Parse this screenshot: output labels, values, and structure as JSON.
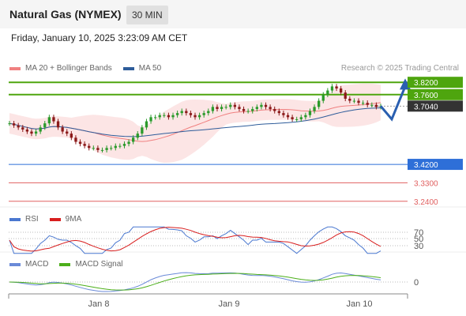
{
  "header": {
    "title": "Natural Gas (NYMEX)",
    "timeframe": "30 MIN",
    "datetime": "Friday, January 10, 2025 3:23:09 AM CET",
    "credit": "Research © 2025 Trading Central"
  },
  "legends": {
    "main": [
      {
        "label": "MA 20 + Bollinger Bands",
        "color": "#f08080"
      },
      {
        "label": "MA 50",
        "color": "#2e5c9a"
      }
    ],
    "rsi": [
      {
        "label": "RSI",
        "color": "#4a78d0"
      },
      {
        "label": "9MA",
        "color": "#d81e1e"
      }
    ],
    "macd": [
      {
        "label": "MACD",
        "color": "#6a8ad8"
      },
      {
        "label": "MACD Signal",
        "color": "#4caf1a"
      }
    ]
  },
  "levels": [
    {
      "value": "3.8200",
      "price": 3.82,
      "color": "#4ea50e",
      "style": "box"
    },
    {
      "value": "3.7600",
      "price": 3.76,
      "color": "#4ea50e",
      "style": "box"
    },
    {
      "value": "3.7040",
      "price": 3.704,
      "color": "#333333",
      "style": "box"
    },
    {
      "value": "3.4200",
      "price": 3.42,
      "color": "#2e6fd8",
      "style": "box"
    },
    {
      "value": "3.3300",
      "price": 3.33,
      "color": "#e06060",
      "style": "text"
    },
    {
      "value": "3.2400",
      "price": 3.24,
      "color": "#e06060",
      "style": "text"
    }
  ],
  "rsi_levels": [
    "70",
    "50",
    "30"
  ],
  "macd_zero": "0",
  "x_labels": [
    "Jan 8",
    "Jan 9",
    "Jan 10"
  ],
  "chart_data": {
    "type": "candlestick",
    "instrument": "Natural Gas (NYMEX)",
    "interval": "30 MIN",
    "ylim": [
      3.22,
      3.84
    ],
    "x_ticks": [
      "Jan 8",
      "Jan 9",
      "Jan 10"
    ],
    "key_levels": [
      3.82,
      3.76,
      3.704,
      3.42,
      3.33,
      3.24
    ],
    "close_series": [
      3.62,
      3.61,
      3.6,
      3.59,
      3.58,
      3.57,
      3.58,
      3.6,
      3.62,
      3.65,
      3.63,
      3.6,
      3.58,
      3.57,
      3.55,
      3.53,
      3.52,
      3.51,
      3.5,
      3.5,
      3.49,
      3.49,
      3.5,
      3.5,
      3.51,
      3.51,
      3.52,
      3.53,
      3.55,
      3.57,
      3.6,
      3.63,
      3.65,
      3.65,
      3.66,
      3.66,
      3.65,
      3.66,
      3.67,
      3.68,
      3.67,
      3.66,
      3.65,
      3.66,
      3.67,
      3.68,
      3.7,
      3.69,
      3.7,
      3.7,
      3.71,
      3.7,
      3.69,
      3.68,
      3.68,
      3.69,
      3.7,
      3.71,
      3.7,
      3.69,
      3.68,
      3.67,
      3.66,
      3.65,
      3.64,
      3.64,
      3.65,
      3.66,
      3.68,
      3.7,
      3.73,
      3.76,
      3.78,
      3.8,
      3.79,
      3.77,
      3.74,
      3.73,
      3.73,
      3.72,
      3.72,
      3.71,
      3.71,
      3.7,
      3.704
    ],
    "projection": [
      3.704,
      3.64,
      3.8
    ]
  }
}
